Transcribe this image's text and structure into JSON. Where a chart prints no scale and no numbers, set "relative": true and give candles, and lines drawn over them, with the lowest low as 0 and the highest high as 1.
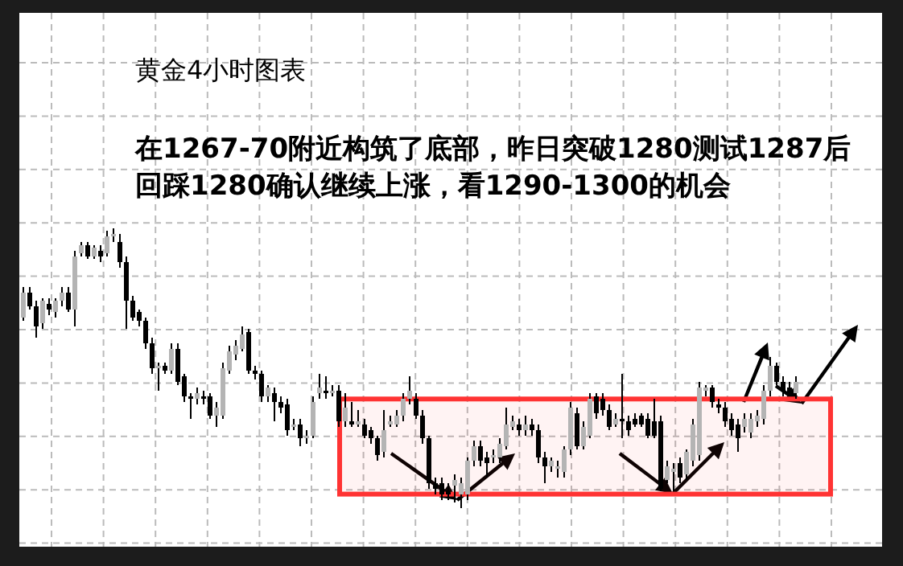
{
  "chart_data": {
    "type": "candlestick",
    "title": "黄金4小时图表",
    "annotations": [
      "在1267-70附近构筑了底部，昨日突破1280测试1287后回踩1280确认继续上涨，看1290-1300的机会"
    ],
    "relative": true,
    "grid": true,
    "bands": [
      {
        "axis": "y",
        "from": 0.05,
        "to": 0.39,
        "color": "#ff3333"
      }
    ],
    "categories": [
      null,
      null,
      null,
      null,
      null,
      null,
      null,
      null,
      null,
      null,
      null,
      null,
      null,
      null,
      null,
      null,
      null,
      null,
      null,
      null,
      null,
      null,
      null,
      null,
      null,
      null,
      null,
      null,
      null,
      null,
      null,
      null,
      null,
      null,
      null,
      null,
      null,
      null,
      null,
      null,
      null,
      null,
      null,
      null,
      null,
      null,
      null,
      null,
      null,
      null,
      null,
      null,
      null,
      null,
      null,
      null,
      null,
      null,
      null,
      null,
      null,
      null,
      null,
      null,
      null,
      null,
      null,
      null,
      null,
      null,
      null,
      null,
      null,
      null,
      null,
      null,
      null,
      null,
      null,
      null,
      null,
      null,
      null,
      null,
      null,
      null,
      null,
      null,
      null,
      null,
      null,
      null,
      null,
      null,
      null,
      null,
      null,
      null,
      null,
      null,
      null,
      null,
      null,
      null,
      null,
      null,
      null,
      null,
      null,
      null,
      null,
      null,
      null,
      null,
      null,
      null,
      null,
      null,
      null,
      null,
      null
    ],
    "ohlc": [
      [
        0.68,
        0.79,
        0.67,
        0.77
      ],
      [
        0.77,
        0.79,
        0.71,
        0.72
      ],
      [
        0.72,
        0.74,
        0.61,
        0.65
      ],
      [
        0.66,
        0.75,
        0.64,
        0.74
      ],
      [
        0.73,
        0.75,
        0.69,
        0.71
      ],
      [
        0.7,
        0.75,
        0.68,
        0.74
      ],
      [
        0.74,
        0.79,
        0.72,
        0.77
      ],
      [
        0.77,
        0.79,
        0.7,
        0.71
      ],
      [
        0.71,
        0.92,
        0.65,
        0.9
      ],
      [
        0.91,
        0.95,
        0.9,
        0.94
      ],
      [
        0.94,
        0.95,
        0.89,
        0.9
      ],
      [
        0.9,
        0.94,
        0.89,
        0.93
      ],
      [
        0.92,
        0.94,
        0.88,
        0.9
      ],
      [
        0.91,
        0.99,
        0.9,
        0.97
      ],
      [
        0.97,
        1,
        0.95,
        0.98
      ],
      [
        0.95,
        0.98,
        0.86,
        0.88
      ],
      [
        0.88,
        0.9,
        0.64,
        0.74
      ],
      [
        0.74,
        0.76,
        0.67,
        0.68
      ],
      [
        0.7,
        0.71,
        0.65,
        0.67
      ],
      [
        0.67,
        0.68,
        0.57,
        0.59
      ],
      [
        0.59,
        0.61,
        0.48,
        0.5
      ],
      [
        0.5,
        0.52,
        0.42,
        0.51
      ],
      [
        0.51,
        0.52,
        0.48,
        0.49
      ],
      [
        0.49,
        0.59,
        0.48,
        0.57
      ],
      [
        0.57,
        0.59,
        0.44,
        0.45
      ],
      [
        0.47,
        0.48,
        0.38,
        0.4
      ],
      [
        0.4,
        0.41,
        0.32,
        0.39
      ],
      [
        0.39,
        0.43,
        0.37,
        0.41
      ],
      [
        0.4,
        0.42,
        0.37,
        0.39
      ],
      [
        0.4,
        0.41,
        0.32,
        0.33
      ],
      [
        0.33,
        0.38,
        0.29,
        0.36
      ],
      [
        0.33,
        0.52,
        0.32,
        0.5
      ],
      [
        0.49,
        0.58,
        0.48,
        0.56
      ],
      [
        0.55,
        0.6,
        0.53,
        0.58
      ],
      [
        0.57,
        0.65,
        0.56,
        0.62
      ],
      [
        0.63,
        0.64,
        0.48,
        0.49
      ],
      [
        0.49,
        0.51,
        0.46,
        0.48
      ],
      [
        0.48,
        0.49,
        0.38,
        0.4
      ],
      [
        0.4,
        0.44,
        0.38,
        0.43
      ],
      [
        0.41,
        0.43,
        0.31,
        0.38
      ],
      [
        0.38,
        0.4,
        0.34,
        0.36
      ],
      [
        0.37,
        0.39,
        0.26,
        0.28
      ],
      [
        0.29,
        0.32,
        0.28,
        0.3
      ],
      [
        0.3,
        0.32,
        0.22,
        0.25
      ],
      [
        0.25,
        0.28,
        0.23,
        0.26
      ],
      [
        0.26,
        0.4,
        0.25,
        0.38
      ],
      [
        0.41,
        0.48,
        0.39,
        0.43
      ],
      [
        0.42,
        0.47,
        0.39,
        0.41
      ],
      [
        0.41,
        0.44,
        0.4,
        0.42
      ],
      [
        0.42,
        0.44,
        0.29,
        0.31
      ],
      [
        0.31,
        0.41,
        0.29,
        0.36
      ],
      [
        0.31,
        0.38,
        0.29,
        0.3
      ],
      [
        0.3,
        0.35,
        0.29,
        0.31
      ],
      [
        0.3,
        0.32,
        0.25,
        0.26
      ],
      [
        0.28,
        0.29,
        0.23,
        0.25
      ],
      [
        0.25,
        0.26,
        0.17,
        0.19
      ],
      [
        0.2,
        0.35,
        0.18,
        0.28
      ],
      [
        0.3,
        0.33,
        0.29,
        0.31
      ],
      [
        0.3,
        0.35,
        0.29,
        0.33
      ],
      [
        0.33,
        0.41,
        0.31,
        0.39
      ],
      [
        0.39,
        0.47,
        0.37,
        0.42
      ],
      [
        0.39,
        0.41,
        0.32,
        0.33
      ],
      [
        0.33,
        0.35,
        0.23,
        0.25
      ],
      [
        0.25,
        0.26,
        0.07,
        0.09
      ],
      [
        0.09,
        0.11,
        0.05,
        0.07
      ],
      [
        0.09,
        0.11,
        0.03,
        0.05
      ],
      [
        0.06,
        0.09,
        0.03,
        0.05
      ],
      [
        0.08,
        0.12,
        0.02,
        0.1
      ],
      [
        0.05,
        0.11,
        0,
        0.09
      ],
      [
        0.05,
        0.18,
        0.03,
        0.17
      ],
      [
        0.17,
        0.24,
        0.15,
        0.22
      ],
      [
        0.22,
        0.24,
        0.15,
        0.17
      ],
      [
        0.18,
        0.2,
        0.11,
        0.16
      ],
      [
        0.18,
        0.21,
        0.16,
        0.19
      ],
      [
        0.18,
        0.25,
        0.16,
        0.23
      ],
      [
        0.22,
        0.36,
        0.21,
        0.3
      ],
      [
        0.29,
        0.33,
        0.28,
        0.31
      ],
      [
        0.3,
        0.32,
        0.26,
        0.28
      ],
      [
        0.28,
        0.33,
        0.26,
        0.3
      ],
      [
        0.3,
        0.32,
        0.26,
        0.28
      ],
      [
        0.28,
        0.3,
        0.16,
        0.18
      ],
      [
        0.18,
        0.2,
        0.09,
        0.15
      ],
      [
        0.15,
        0.18,
        0.13,
        0.17
      ],
      [
        0.14,
        0.17,
        0.11,
        0.15
      ],
      [
        0.13,
        0.22,
        0.11,
        0.21
      ],
      [
        0.21,
        0.38,
        0.19,
        0.36
      ],
      [
        0.34,
        0.36,
        0.21,
        0.22
      ],
      [
        0.22,
        0.31,
        0.21,
        0.29
      ],
      [
        0.26,
        0.41,
        0.25,
        0.39
      ],
      [
        0.4,
        0.41,
        0.32,
        0.34
      ],
      [
        0.39,
        0.41,
        0.33,
        0.35
      ],
      [
        0.35,
        0.37,
        0.28,
        0.29
      ],
      [
        0.3,
        0.34,
        0.29,
        0.32
      ],
      [
        0.32,
        0.48,
        0.25,
        0.31
      ],
      [
        0.31,
        0.33,
        0.26,
        0.28
      ],
      [
        0.32,
        0.34,
        0.29,
        0.3
      ],
      [
        0.33,
        0.34,
        0.29,
        0.3
      ],
      [
        0.32,
        0.34,
        0.25,
        0.26
      ],
      [
        0.31,
        0.39,
        0.25,
        0.26
      ],
      [
        0.31,
        0.33,
        0.06,
        0.07
      ],
      [
        0.1,
        0.17,
        0.09,
        0.15
      ],
      [
        0.13,
        0.16,
        0.06,
        0.14
      ],
      [
        0.16,
        0.18,
        0.09,
        0.11
      ],
      [
        0.12,
        0.21,
        0.1,
        0.2
      ],
      [
        0.17,
        0.32,
        0.15,
        0.3
      ],
      [
        0.19,
        0.45,
        0.17,
        0.43
      ],
      [
        0.42,
        0.44,
        0.4,
        0.43
      ],
      [
        0.43,
        0.44,
        0.36,
        0.38
      ],
      [
        0.37,
        0.39,
        0.34,
        0.36
      ],
      [
        0.36,
        0.38,
        0.29,
        0.31
      ],
      [
        0.32,
        0.34,
        0.26,
        0.28
      ],
      [
        0.3,
        0.32,
        0.2,
        0.25
      ],
      [
        0.29,
        0.34,
        0.27,
        0.32
      ],
      [
        0.27,
        0.34,
        0.25,
        0.32
      ],
      [
        0.31,
        0.35,
        0.29,
        0.33
      ],
      [
        0.32,
        0.44,
        0.3,
        0.42
      ],
      [
        0.42,
        0.54,
        0.4,
        0.51
      ],
      [
        0.51,
        0.52,
        0.44,
        0.45
      ],
      [
        0.45,
        0.47,
        0.4,
        0.42
      ],
      [
        0.43,
        0.45,
        0.4,
        0.41
      ],
      [
        0.41,
        0.47,
        0.39,
        0.45
      ]
    ]
  }
}
